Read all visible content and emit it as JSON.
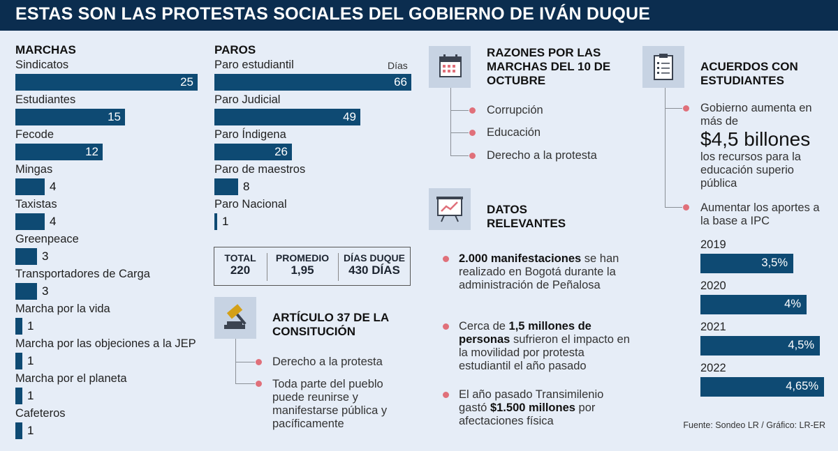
{
  "header": {
    "title": "ESTAS SON LAS PROTESTAS SOCIALES DEL GOBIERNO DE IVÁN DUQUE"
  },
  "colors": {
    "header_bg": "#0b2d4f",
    "bar": "#0e4a73",
    "background": "#e6edf7",
    "bullet": "#e0707a",
    "icon_bg": "#c7d3e3"
  },
  "chart_data": [
    {
      "type": "bar",
      "orientation": "horizontal",
      "title": "MARCHAS",
      "categories": [
        "Sindicatos",
        "Estudiantes",
        "Fecode",
        "Mingas",
        "Taxistas",
        "Greenpeace",
        "Transportadores de Carga",
        "Marcha por la vida",
        "Marcha por las objeciones a la JEP",
        "Marcha por el planeta",
        "Cafeteros"
      ],
      "values": [
        25,
        15,
        12,
        4,
        4,
        3,
        3,
        1,
        1,
        1,
        1
      ],
      "xlim": [
        0,
        25
      ]
    },
    {
      "type": "bar",
      "orientation": "horizontal",
      "title": "PAROS",
      "unit": "Días",
      "categories": [
        "Paro estudiantil",
        "Paro Judicial",
        "Paro Índigena",
        "Paro de maestros",
        "Paro Nacional"
      ],
      "values": [
        66,
        49,
        26,
        8,
        1
      ],
      "xlim": [
        0,
        66
      ]
    },
    {
      "type": "bar",
      "orientation": "horizontal",
      "title": "Aumentar los aportes a la base a IPC",
      "categories": [
        "2019",
        "2020",
        "2021",
        "2022"
      ],
      "values": [
        3.5,
        4,
        4.5,
        4.65
      ],
      "value_labels": [
        "3,5%",
        "4%",
        "4,5%",
        "4,65%"
      ],
      "xlim": [
        0,
        4.65
      ]
    }
  ],
  "totals": [
    {
      "label": "TOTAL",
      "value": "220"
    },
    {
      "label": "PROMEDIO",
      "value": "1,95"
    },
    {
      "label": "DÍAS DUQUE",
      "value": "430 DÍAS"
    }
  ],
  "articulo": {
    "title": "ARTÍCULO 37 DE LA CONSITUCIÓN",
    "items": [
      "Derecho a la protesta",
      "Toda parte del pueblo puede reunirse y manifestarse pública y pacíficamente"
    ]
  },
  "razones": {
    "title": "RAZONES POR LAS MARCHAS DEL 10 DE OCTUBRE",
    "items": [
      "Corrupción",
      "Educación",
      "Derecho a la protesta"
    ]
  },
  "datos": {
    "title": "DATOS RELEVANTES",
    "b1_bold": "2.000 manifestaciones",
    "b1_rest": " se han realizado en Bogotá durante la administración de Peñalosa",
    "b2_pre": "Cerca de ",
    "b2_bold": "1,5 millones de personas",
    "b2_rest": " sufrieron el impacto en la movilidad por protesta estudiantil el año pasado",
    "b3_pre": "El año pasado Transimilenio gastó ",
    "b3_bold": "$1.500 millones",
    "b3_rest": " por afectaciones física"
  },
  "acuerdos": {
    "title": "ACUERDOS CON ESTUDIANTES",
    "item1_pre": "Gobierno aumenta en más de",
    "item1_amount": "$4,5 billones",
    "item1_post": "los recursos para la educación superio pública",
    "item2": "Aumentar los aportes a la base a IPC"
  },
  "source": "Fuente: Sondeo LR / Gráfico: LR-ER",
  "icons": {
    "razones": "calendar-icon",
    "datos": "chart-board-icon",
    "articulo": "gavel-icon",
    "acuerdos": "clipboard-icon"
  }
}
